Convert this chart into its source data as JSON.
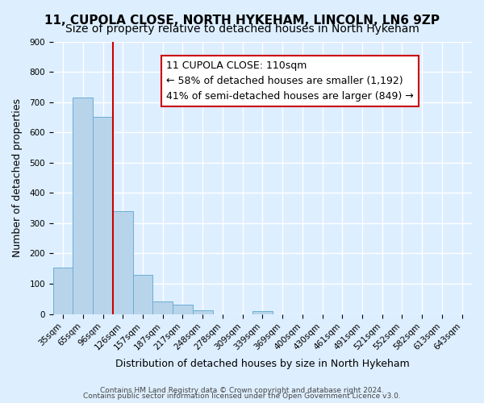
{
  "title1": "11, CUPOLA CLOSE, NORTH HYKEHAM, LINCOLN, LN6 9ZP",
  "title2": "Size of property relative to detached houses in North Hykeham",
  "xlabel": "Distribution of detached houses by size in North Hykeham",
  "ylabel": "Number of detached properties",
  "footer1": "Contains HM Land Registry data © Crown copyright and database right 2024.",
  "footer2": "Contains public sector information licensed under the Open Government Licence v3.0.",
  "annotation_line1": "11 CUPOLA CLOSE: 110sqm",
  "annotation_line2": "← 58% of detached houses are smaller (1,192)",
  "annotation_line3": "41% of semi-detached houses are larger (849) →",
  "bin_labels": [
    "35sqm",
    "65sqm",
    "96sqm",
    "126sqm",
    "157sqm",
    "187sqm",
    "217sqm",
    "248sqm",
    "278sqm",
    "309sqm",
    "339sqm",
    "369sqm",
    "400sqm",
    "430sqm",
    "461sqm",
    "491sqm",
    "521sqm",
    "552sqm",
    "582sqm",
    "613sqm",
    "643sqm"
  ],
  "bar_values": [
    152,
    714,
    652,
    340,
    130,
    42,
    30,
    12,
    0,
    0,
    10,
    0,
    0,
    0,
    0,
    0,
    0,
    0,
    0,
    0,
    0
  ],
  "bar_color": "#b8d4ea",
  "bar_edge_color": "#6aaed6",
  "red_line_x": 2.5,
  "ylim": [
    0,
    900
  ],
  "yticks": [
    0,
    100,
    200,
    300,
    400,
    500,
    600,
    700,
    800,
    900
  ],
  "bg_color": "#ddeeff",
  "plot_bg_color": "#ddeeff",
  "grid_color": "#ffffff",
  "annotation_box_color": "#ffffff",
  "annotation_box_edge": "#cc0000",
  "red_line_color": "#cc0000",
  "title_fontsize": 11,
  "subtitle_fontsize": 10,
  "axis_label_fontsize": 9,
  "tick_fontsize": 7.5,
  "annotation_fontsize": 9
}
